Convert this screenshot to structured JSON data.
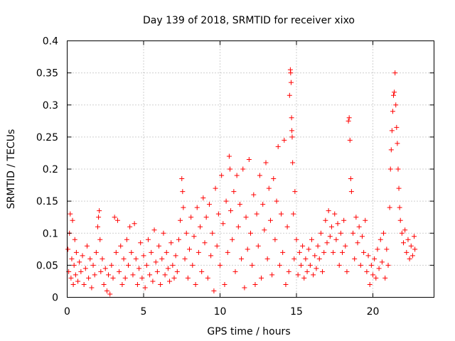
{
  "chart_data": {
    "type": "scatter",
    "title": "Day 139 of 2018, SRMTID for receiver xixo",
    "xlabel": "GPS time / hours",
    "ylabel": "SRMTID / TECUs",
    "xlim": [
      0,
      24
    ],
    "ylim": [
      0,
      0.4
    ],
    "xticks": [
      0,
      5,
      10,
      15,
      20
    ],
    "yticks": [
      0,
      0.05,
      0.1,
      0.15,
      0.2,
      0.25,
      0.3,
      0.35,
      0.4
    ],
    "xtick_labels": [
      "0",
      "5",
      "10",
      "15",
      "20"
    ],
    "ytick_labels": [
      "0",
      "0.05",
      "0.1",
      "0.15",
      "0.2",
      "0.25",
      "0.3",
      "0.35",
      "0.4"
    ],
    "grid": true,
    "marker": "+",
    "color": "#ff0000",
    "series": [
      {
        "name": "SRMTID",
        "points": [
          [
            0.05,
            0.075
          ],
          [
            0.1,
            0.04
          ],
          [
            0.15,
            0.1
          ],
          [
            0.2,
            0.13
          ],
          [
            0.25,
            0.03
          ],
          [
            0.3,
            0.06
          ],
          [
            0.35,
            0.12
          ],
          [
            0.4,
            0.02
          ],
          [
            0.45,
            0.05
          ],
          [
            0.5,
            0.09
          ],
          [
            0.55,
            0.035
          ],
          [
            0.6,
            0.07
          ],
          [
            0.7,
            0.025
          ],
          [
            0.8,
            0.055
          ],
          [
            0.9,
            0.04
          ],
          [
            1.0,
            0.065
          ],
          [
            1.1,
            0.02
          ],
          [
            1.2,
            0.045
          ],
          [
            1.3,
            0.08
          ],
          [
            1.4,
            0.03
          ],
          [
            1.5,
            0.06
          ],
          [
            1.6,
            0.015
          ],
          [
            1.7,
            0.05
          ],
          [
            1.8,
            0.035
          ],
          [
            1.9,
            0.07
          ],
          [
            2.0,
            0.11
          ],
          [
            2.05,
            0.125
          ],
          [
            2.1,
            0.135
          ],
          [
            2.15,
            0.09
          ],
          [
            2.2,
            0.04
          ],
          [
            2.3,
            0.06
          ],
          [
            2.4,
            0.02
          ],
          [
            2.5,
            0.045
          ],
          [
            2.6,
            0.01
          ],
          [
            2.7,
            0.035
          ],
          [
            2.8,
            0.005
          ],
          [
            2.9,
            0.05
          ],
          [
            3.0,
            0.03
          ],
          [
            3.1,
            0.125
          ],
          [
            3.2,
            0.07
          ],
          [
            3.3,
            0.12
          ],
          [
            3.4,
            0.04
          ],
          [
            3.5,
            0.08
          ],
          [
            3.6,
            0.02
          ],
          [
            3.7,
            0.06
          ],
          [
            3.8,
            0.03
          ],
          [
            3.9,
            0.09
          ],
          [
            4.0,
            0.05
          ],
          [
            4.1,
            0.11
          ],
          [
            4.2,
            0.07
          ],
          [
            4.3,
            0.035
          ],
          [
            4.4,
            0.115
          ],
          [
            4.5,
            0.06
          ],
          [
            4.6,
            0.02
          ],
          [
            4.7,
            0.045
          ],
          [
            4.8,
            0.085
          ],
          [
            4.9,
            0.03
          ],
          [
            5.0,
            0.065
          ],
          [
            5.1,
            0.015
          ],
          [
            5.2,
            0.05
          ],
          [
            5.3,
            0.09
          ],
          [
            5.4,
            0.035
          ],
          [
            5.5,
            0.07
          ],
          [
            5.6,
            0.025
          ],
          [
            5.7,
            0.105
          ],
          [
            5.8,
            0.055
          ],
          [
            5.9,
            0.04
          ],
          [
            6.0,
            0.08
          ],
          [
            6.1,
            0.02
          ],
          [
            6.2,
            0.06
          ],
          [
            6.3,
            0.1
          ],
          [
            6.4,
            0.035
          ],
          [
            6.5,
            0.07
          ],
          [
            6.6,
            0.045
          ],
          [
            6.7,
            0.025
          ],
          [
            6.8,
            0.085
          ],
          [
            6.9,
            0.05
          ],
          [
            7.0,
            0.03
          ],
          [
            7.1,
            0.065
          ],
          [
            7.2,
            0.04
          ],
          [
            7.3,
            0.09
          ],
          [
            7.4,
            0.12
          ],
          [
            7.5,
            0.185
          ],
          [
            7.55,
            0.165
          ],
          [
            7.6,
            0.14
          ],
          [
            7.7,
            0.06
          ],
          [
            7.8,
            0.1
          ],
          [
            7.9,
            0.03
          ],
          [
            8.0,
            0.075
          ],
          [
            8.1,
            0.125
          ],
          [
            8.2,
            0.05
          ],
          [
            8.3,
            0.095
          ],
          [
            8.4,
            0.02
          ],
          [
            8.5,
            0.14
          ],
          [
            8.6,
            0.07
          ],
          [
            8.7,
            0.11
          ],
          [
            8.8,
            0.04
          ],
          [
            8.9,
            0.155
          ],
          [
            9.0,
            0.085
          ],
          [
            9.1,
            0.125
          ],
          [
            9.2,
            0.03
          ],
          [
            9.3,
            0.145
          ],
          [
            9.4,
            0.065
          ],
          [
            9.5,
            0.1
          ],
          [
            9.6,
            0.01
          ],
          [
            9.7,
            0.17
          ],
          [
            9.8,
            0.08
          ],
          [
            9.9,
            0.13
          ],
          [
            10.0,
            0.05
          ],
          [
            10.1,
            0.19
          ],
          [
            10.2,
            0.115
          ],
          [
            10.3,
            0.02
          ],
          [
            10.4,
            0.15
          ],
          [
            10.5,
            0.07
          ],
          [
            10.6,
            0.22
          ],
          [
            10.65,
            0.2
          ],
          [
            10.7,
            0.135
          ],
          [
            10.8,
            0.09
          ],
          [
            10.9,
            0.165
          ],
          [
            11.0,
            0.04
          ],
          [
            11.1,
            0.19
          ],
          [
            11.2,
            0.11
          ],
          [
            11.3,
            0.145
          ],
          [
            11.4,
            0.06
          ],
          [
            11.5,
            0.2
          ],
          [
            11.6,
            0.015
          ],
          [
            11.7,
            0.125
          ],
          [
            11.8,
            0.075
          ],
          [
            11.9,
            0.215
          ],
          [
            12.0,
            0.1
          ],
          [
            12.1,
            0.05
          ],
          [
            12.2,
            0.16
          ],
          [
            12.3,
            0.02
          ],
          [
            12.4,
            0.13
          ],
          [
            12.5,
            0.08
          ],
          [
            12.6,
            0.19
          ],
          [
            12.7,
            0.03
          ],
          [
            12.8,
            0.145
          ],
          [
            12.9,
            0.105
          ],
          [
            13.0,
            0.21
          ],
          [
            13.1,
            0.06
          ],
          [
            13.2,
            0.17
          ],
          [
            13.3,
            0.12
          ],
          [
            13.4,
            0.035
          ],
          [
            13.5,
            0.185
          ],
          [
            13.6,
            0.09
          ],
          [
            13.7,
            0.15
          ],
          [
            13.8,
            0.235
          ],
          [
            13.9,
            0.05
          ],
          [
            14.0,
            0.13
          ],
          [
            14.1,
            0.07
          ],
          [
            14.2,
            0.245
          ],
          [
            14.3,
            0.02
          ],
          [
            14.4,
            0.11
          ],
          [
            14.5,
            0.04
          ],
          [
            14.55,
            0.315
          ],
          [
            14.6,
            0.355
          ],
          [
            14.62,
            0.35
          ],
          [
            14.65,
            0.335
          ],
          [
            14.68,
            0.28
          ],
          [
            14.7,
            0.26
          ],
          [
            14.72,
            0.25
          ],
          [
            14.75,
            0.21
          ],
          [
            14.8,
            0.13
          ],
          [
            14.85,
            0.06
          ],
          [
            14.9,
            0.165
          ],
          [
            15.0,
            0.09
          ],
          [
            15.1,
            0.035
          ],
          [
            15.2,
            0.07
          ],
          [
            15.3,
            0.05
          ],
          [
            15.4,
            0.08
          ],
          [
            15.5,
            0.03
          ],
          [
            15.6,
            0.06
          ],
          [
            15.7,
            0.04
          ],
          [
            15.8,
            0.075
          ],
          [
            15.9,
            0.05
          ],
          [
            16.0,
            0.09
          ],
          [
            16.1,
            0.035
          ],
          [
            16.2,
            0.065
          ],
          [
            16.3,
            0.045
          ],
          [
            16.4,
            0.08
          ],
          [
            16.5,
            0.06
          ],
          [
            16.6,
            0.1
          ],
          [
            16.7,
            0.04
          ],
          [
            16.8,
            0.07
          ],
          [
            16.9,
            0.12
          ],
          [
            17.0,
            0.085
          ],
          [
            17.1,
            0.135
          ],
          [
            17.2,
            0.095
          ],
          [
            17.3,
            0.11
          ],
          [
            17.4,
            0.07
          ],
          [
            17.5,
            0.13
          ],
          [
            17.6,
            0.09
          ],
          [
            17.7,
            0.115
          ],
          [
            17.8,
            0.05
          ],
          [
            17.9,
            0.1
          ],
          [
            18.0,
            0.07
          ],
          [
            18.1,
            0.12
          ],
          [
            18.2,
            0.08
          ],
          [
            18.3,
            0.04
          ],
          [
            18.4,
            0.275
          ],
          [
            18.45,
            0.28
          ],
          [
            18.5,
            0.245
          ],
          [
            18.55,
            0.185
          ],
          [
            18.6,
            0.165
          ],
          [
            18.7,
            0.1
          ],
          [
            18.8,
            0.06
          ],
          [
            18.9,
            0.125
          ],
          [
            19.0,
            0.085
          ],
          [
            19.1,
            0.11
          ],
          [
            19.2,
            0.05
          ],
          [
            19.3,
            0.095
          ],
          [
            19.4,
            0.07
          ],
          [
            19.5,
            0.12
          ],
          [
            19.6,
            0.04
          ],
          [
            19.7,
            0.065
          ],
          [
            19.8,
            0.02
          ],
          [
            19.9,
            0.05
          ],
          [
            20.0,
            0.035
          ],
          [
            20.1,
            0.06
          ],
          [
            20.2,
            0.03
          ],
          [
            20.3,
            0.075
          ],
          [
            20.4,
            0.045
          ],
          [
            20.5,
            0.09
          ],
          [
            20.6,
            0.055
          ],
          [
            20.7,
            0.1
          ],
          [
            20.8,
            0.03
          ],
          [
            20.9,
            0.075
          ],
          [
            21.0,
            0.05
          ],
          [
            21.1,
            0.14
          ],
          [
            21.15,
            0.2
          ],
          [
            21.2,
            0.23
          ],
          [
            21.25,
            0.26
          ],
          [
            21.3,
            0.29
          ],
          [
            21.35,
            0.315
          ],
          [
            21.4,
            0.32
          ],
          [
            21.45,
            0.35
          ],
          [
            21.5,
            0.3
          ],
          [
            21.55,
            0.265
          ],
          [
            21.6,
            0.24
          ],
          [
            21.65,
            0.2
          ],
          [
            21.7,
            0.17
          ],
          [
            21.75,
            0.14
          ],
          [
            21.8,
            0.12
          ],
          [
            21.9,
            0.1
          ],
          [
            22.0,
            0.085
          ],
          [
            22.1,
            0.105
          ],
          [
            22.2,
            0.07
          ],
          [
            22.3,
            0.09
          ],
          [
            22.4,
            0.06
          ],
          [
            22.5,
            0.08
          ],
          [
            22.6,
            0.065
          ],
          [
            22.7,
            0.095
          ],
          [
            22.75,
            0.075
          ]
        ]
      }
    ]
  }
}
